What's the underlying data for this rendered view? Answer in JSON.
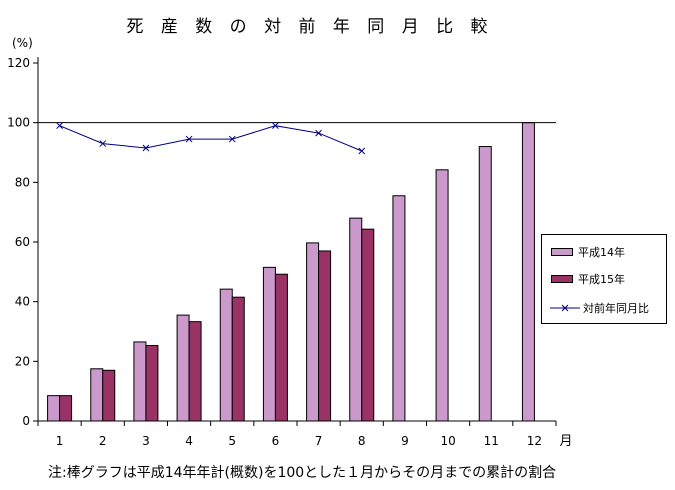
{
  "chart_data": {
    "type": "bar",
    "title": "死 産 数 の 対 前 年 同 月 比 較",
    "y_unit_label": "(%)",
    "x_unit_label": "月",
    "note": "注:棒グラフは平成14年年計(概数)を100とした１月からその月までの累計の割合",
    "categories": [
      "1",
      "2",
      "3",
      "4",
      "5",
      "6",
      "7",
      "8",
      "9",
      "10",
      "11",
      "12"
    ],
    "ylim": [
      0,
      120
    ],
    "yticks": [
      0,
      20,
      40,
      60,
      80,
      100,
      120
    ],
    "reference_line": 100,
    "grid": false,
    "legend_placement": "right",
    "series": [
      {
        "name": "平成14年",
        "kind": "bar",
        "color": "#cc99cc",
        "values": [
          8.5,
          17.5,
          26.5,
          35.5,
          44.2,
          51.5,
          59.7,
          68.0,
          75.5,
          84.2,
          92.0,
          100
        ]
      },
      {
        "name": "平成15年",
        "kind": "bar",
        "color": "#993366",
        "values": [
          8.5,
          17.0,
          25.3,
          33.3,
          41.5,
          49.2,
          57.0,
          64.3,
          null,
          null,
          null,
          null
        ]
      },
      {
        "name": "対前年同月比",
        "kind": "line",
        "color": "#000080",
        "values": [
          99.0,
          93.0,
          91.5,
          94.5,
          94.5,
          99.0,
          96.5,
          90.5,
          null,
          null,
          null,
          null
        ]
      }
    ]
  }
}
